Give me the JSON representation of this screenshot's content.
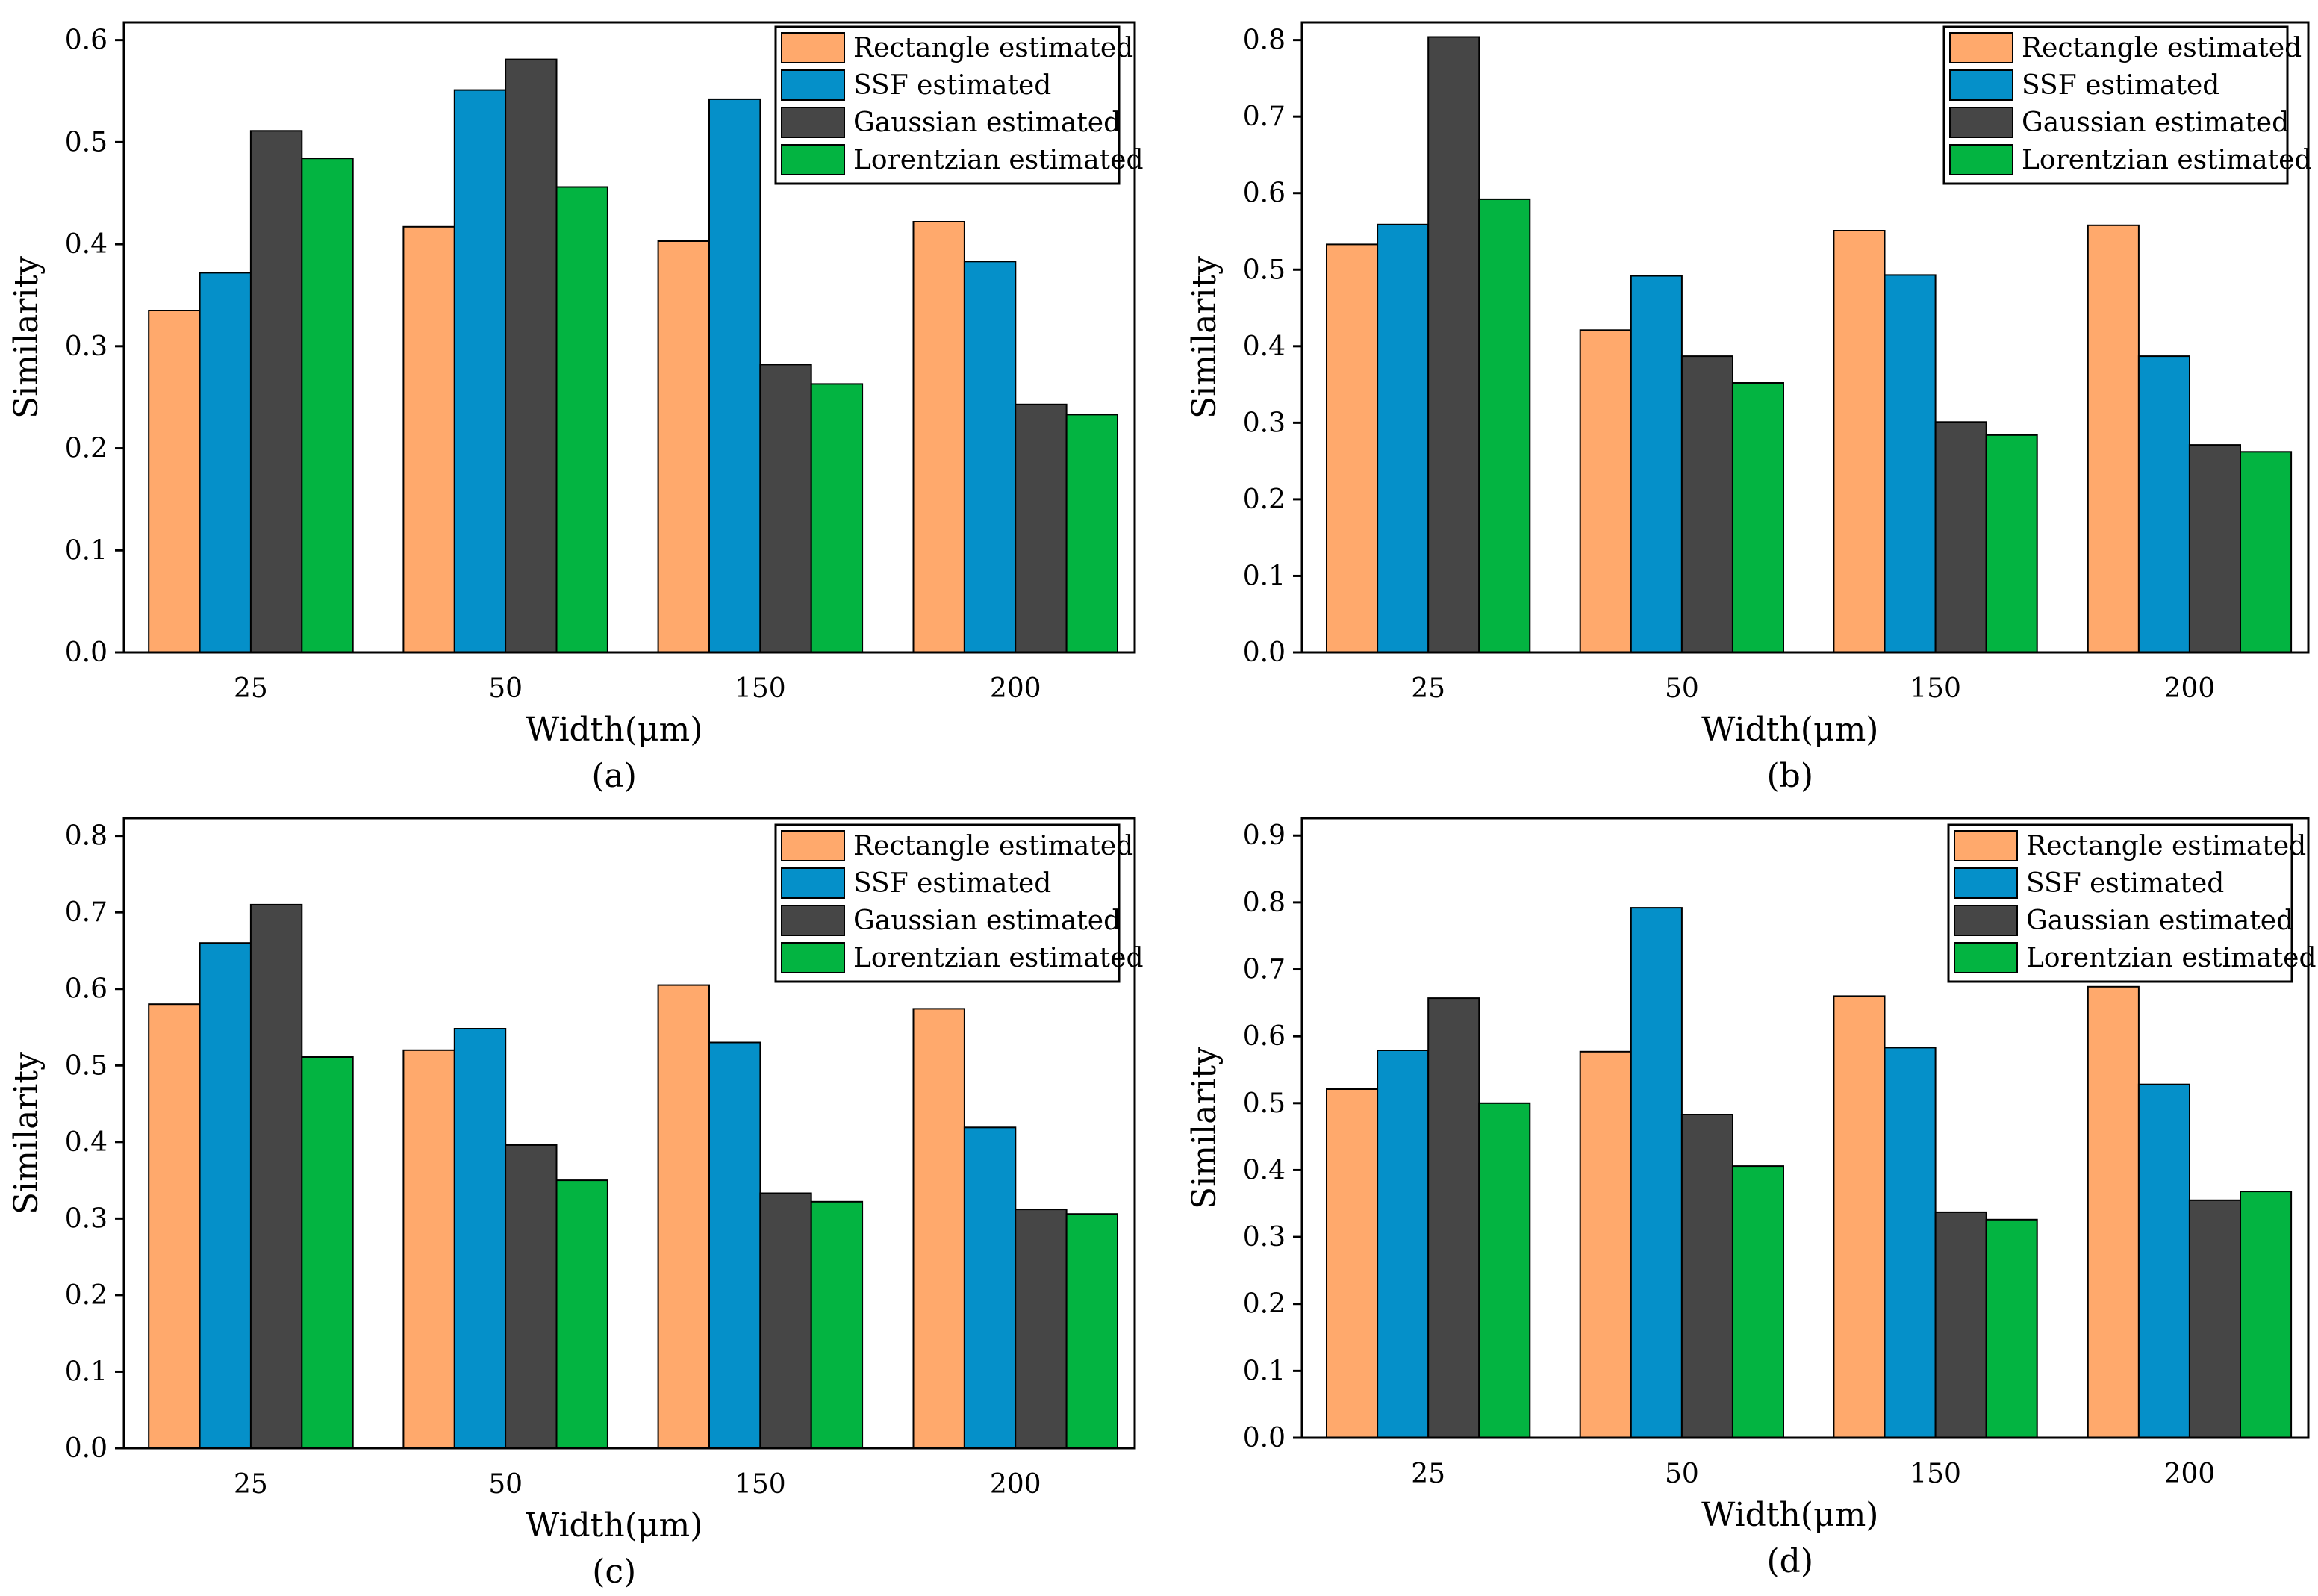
{
  "colors": {
    "Rectangle estimated": "#FFA96C",
    "SSF estimated": "#0590C9",
    "Gaussian estimated": "#464646",
    "Lorentzian estimated": "#03B441"
  },
  "chart_data": [
    {
      "type": "bar",
      "caption": "(a)",
      "xlabel": "Width(μm)",
      "ylabel": "Similarity",
      "categories": [
        "25",
        "50",
        "150",
        "200"
      ],
      "ylim": [
        0,
        0.6
      ],
      "yticks": [
        "0.0",
        "0.1",
        "0.2",
        "0.3",
        "0.4",
        "0.5",
        "0.6"
      ],
      "legend_position": "top-right",
      "series": [
        {
          "name": "Rectangle estimated",
          "values": [
            0.335,
            0.417,
            0.403,
            0.422
          ]
        },
        {
          "name": "SSF estimated",
          "values": [
            0.372,
            0.551,
            0.542,
            0.383
          ]
        },
        {
          "name": "Gaussian estimated",
          "values": [
            0.511,
            0.581,
            0.282,
            0.243
          ]
        },
        {
          "name": "Lorentzian estimated",
          "values": [
            0.484,
            0.456,
            0.263,
            0.233
          ]
        }
      ]
    },
    {
      "type": "bar",
      "caption": "(b)",
      "xlabel": "Width(μm)",
      "ylabel": "Similarity",
      "categories": [
        "25",
        "50",
        "150",
        "200"
      ],
      "ylim": [
        0,
        0.8
      ],
      "yticks": [
        "0.0",
        "0.1",
        "0.2",
        "0.3",
        "0.4",
        "0.5",
        "0.6",
        "0.7",
        "0.8"
      ],
      "legend_position": "top-right",
      "series": [
        {
          "name": "Rectangle estimated",
          "values": [
            0.533,
            0.421,
            0.551,
            0.558
          ]
        },
        {
          "name": "SSF estimated",
          "values": [
            0.559,
            0.492,
            0.493,
            0.387
          ]
        },
        {
          "name": "Gaussian estimated",
          "values": [
            0.804,
            0.387,
            0.301,
            0.271
          ]
        },
        {
          "name": "Lorentzian estimated",
          "values": [
            0.592,
            0.352,
            0.284,
            0.262
          ]
        }
      ]
    },
    {
      "type": "bar",
      "caption": "(c)",
      "xlabel": "Width(μm)",
      "ylabel": "Similarity",
      "categories": [
        "25",
        "50",
        "150",
        "200"
      ],
      "ylim": [
        0,
        0.8
      ],
      "yticks": [
        "0.0",
        "0.1",
        "0.2",
        "0.3",
        "0.4",
        "0.5",
        "0.6",
        "0.7",
        "0.8"
      ],
      "legend_position": "top-right",
      "series": [
        {
          "name": "Rectangle estimated",
          "values": [
            0.58,
            0.52,
            0.605,
            0.574
          ]
        },
        {
          "name": "SSF estimated",
          "values": [
            0.66,
            0.548,
            0.53,
            0.419
          ]
        },
        {
          "name": "Gaussian estimated",
          "values": [
            0.71,
            0.396,
            0.333,
            0.312
          ]
        },
        {
          "name": "Lorentzian estimated",
          "values": [
            0.511,
            0.35,
            0.322,
            0.306
          ]
        }
      ]
    },
    {
      "type": "bar",
      "caption": "(d)",
      "xlabel": "Width(μm)",
      "ylabel": "Similarity",
      "categories": [
        "25",
        "50",
        "150",
        "200"
      ],
      "ylim": [
        0,
        0.9
      ],
      "yticks": [
        "0.0",
        "0.1",
        "0.2",
        "0.3",
        "0.4",
        "0.5",
        "0.6",
        "0.7",
        "0.8",
        "0.9"
      ],
      "legend_position": "top-right",
      "series": [
        {
          "name": "Rectangle estimated",
          "values": [
            0.521,
            0.577,
            0.66,
            0.674
          ]
        },
        {
          "name": "SSF estimated",
          "values": [
            0.579,
            0.792,
            0.583,
            0.528
          ]
        },
        {
          "name": "Gaussian estimated",
          "values": [
            0.657,
            0.483,
            0.337,
            0.355
          ]
        },
        {
          "name": "Lorentzian estimated",
          "values": [
            0.5,
            0.406,
            0.326,
            0.368
          ]
        }
      ]
    }
  ]
}
